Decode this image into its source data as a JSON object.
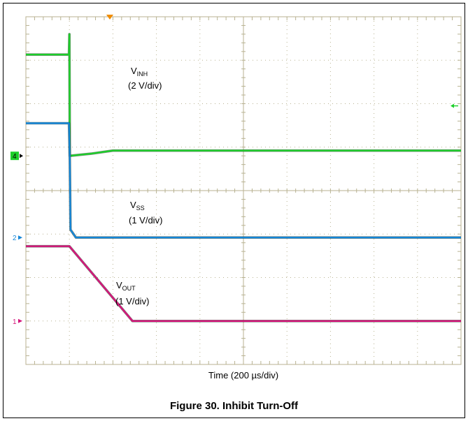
{
  "caption": "Figure 30. Inhibit Turn-Off",
  "chart_data": {
    "type": "line",
    "title": "",
    "xlabel": "Time (200 µs/div)",
    "x_unit": "µs",
    "xlim": [
      0,
      2000
    ],
    "divisions": {
      "x": 10,
      "y": 8
    },
    "grid": true,
    "trigger_marker_color": "#f08c00",
    "ylabel": "",
    "series": [
      {
        "name": "V_INH",
        "label_main": "V",
        "label_sub": "INH",
        "label_scale": "(2 V/div)",
        "channel": "4",
        "color": "#1ccf2a",
        "v_per_div": 2,
        "x": [
          0,
          198,
          200,
          202,
          300,
          400,
          2000
        ],
        "y_div": [
          7.13,
          7.13,
          7.6,
          4.8,
          4.85,
          4.92,
          4.92
        ]
      },
      {
        "name": "V_SS",
        "label_main": "V",
        "label_sub": "SS",
        "label_scale": "(1 V/div)",
        "channel": "2",
        "color": "#1486d8",
        "v_per_div": 1,
        "x": [
          0,
          198,
          202,
          205,
          230,
          2000
        ],
        "y_div": [
          5.55,
          5.55,
          4.7,
          3.1,
          2.92,
          2.92
        ]
      },
      {
        "name": "V_OUT",
        "label_main": "V",
        "label_sub": "OUT",
        "label_scale": "(1 V/div)",
        "channel": "1",
        "color": "#d4147a",
        "v_per_div": 1,
        "x": [
          0,
          200,
          490,
          2000
        ],
        "y_div": [
          2.72,
          2.72,
          1.0,
          1.0
        ]
      }
    ]
  }
}
